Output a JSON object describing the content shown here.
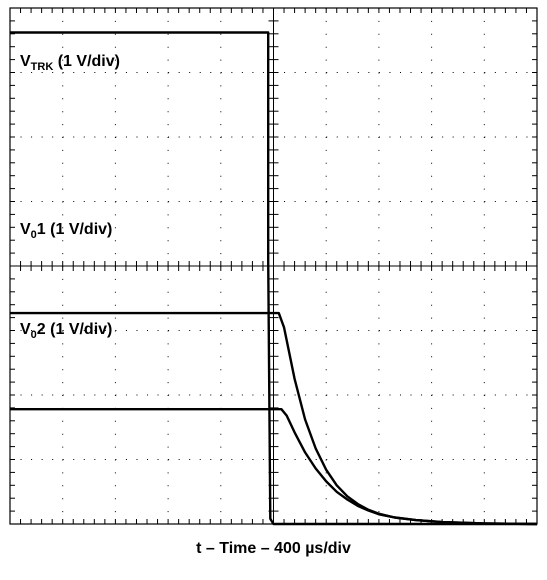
{
  "chart_data": {
    "type": "line",
    "xlabel": "t – Time – 400 µs/div",
    "grid": true,
    "divisions": {
      "x": 10,
      "y": 8
    },
    "xlim": [
      0,
      10
    ],
    "ylim": [
      0,
      8
    ],
    "series": [
      {
        "key": "vtrk",
        "label_main": "V",
        "label_sub": "TRK",
        "label_rest": " (1 V/div)",
        "x": [
          0,
          4.9,
          4.9,
          4.94,
          5.0,
          5.2,
          10
        ],
        "y": [
          7.62,
          7.62,
          4.1,
          0.08,
          0.0,
          0.0,
          0.0
        ]
      },
      {
        "key": "vo1",
        "label_main": "V",
        "label_sub": "0",
        "label_rest": "1 (1 V/div)",
        "x": [
          0,
          5.1,
          5.2,
          5.4,
          5.6,
          5.8,
          6.0,
          6.2,
          6.4,
          6.6,
          6.8,
          7.0,
          7.3,
          7.7,
          8.2,
          9.0,
          10
        ],
        "y": [
          3.27,
          3.27,
          3.05,
          2.25,
          1.62,
          1.17,
          0.84,
          0.6,
          0.43,
          0.31,
          0.22,
          0.16,
          0.1,
          0.06,
          0.03,
          0.01,
          0.0
        ]
      },
      {
        "key": "vo2",
        "label_main": "V",
        "label_sub": "0",
        "label_rest": "2 (1 V/div)",
        "x": [
          0,
          5.15,
          5.25,
          5.4,
          5.6,
          5.8,
          6.0,
          6.2,
          6.4,
          6.6,
          6.8,
          7.0,
          7.3,
          7.7,
          8.2,
          9.0,
          10
        ],
        "y": [
          1.78,
          1.78,
          1.68,
          1.42,
          1.11,
          0.86,
          0.66,
          0.5,
          0.38,
          0.28,
          0.21,
          0.15,
          0.1,
          0.06,
          0.03,
          0.01,
          0.0
        ]
      }
    ]
  }
}
